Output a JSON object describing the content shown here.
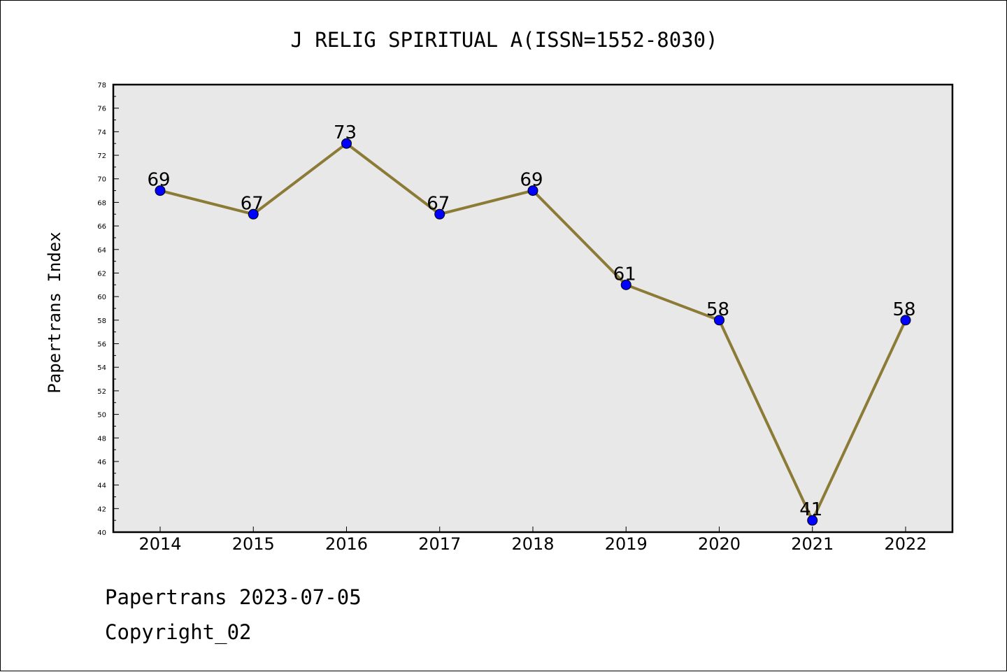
{
  "chart_data": {
    "type": "line",
    "title": "J RELIG SPIRITUAL A(ISSN=1552-8030)",
    "xlabel": "",
    "ylabel": "Papertrans Index",
    "x": [
      "2014",
      "2015",
      "2016",
      "2017",
      "2018",
      "2019",
      "2020",
      "2021",
      "2022"
    ],
    "values": [
      69,
      67,
      73,
      67,
      69,
      61,
      58,
      41,
      58
    ],
    "data_labels": [
      "69",
      "67",
      "73",
      "67",
      "69",
      "61",
      "58",
      "41",
      "58"
    ],
    "ylim": [
      40,
      78
    ],
    "yticks": [
      "40",
      "42",
      "44",
      "46",
      "48",
      "50",
      "52",
      "54",
      "56",
      "58",
      "60",
      "62",
      "64",
      "66",
      "68",
      "70",
      "72",
      "74",
      "76",
      "78"
    ],
    "grid": false,
    "legend": "none",
    "line_color": "#8B7B36",
    "marker_color": "#0000FF",
    "plot_background": "#E8E8E8"
  },
  "footer": {
    "date_line": "Papertrans 2023-07-05",
    "copyright_line": "Copyright_02"
  }
}
